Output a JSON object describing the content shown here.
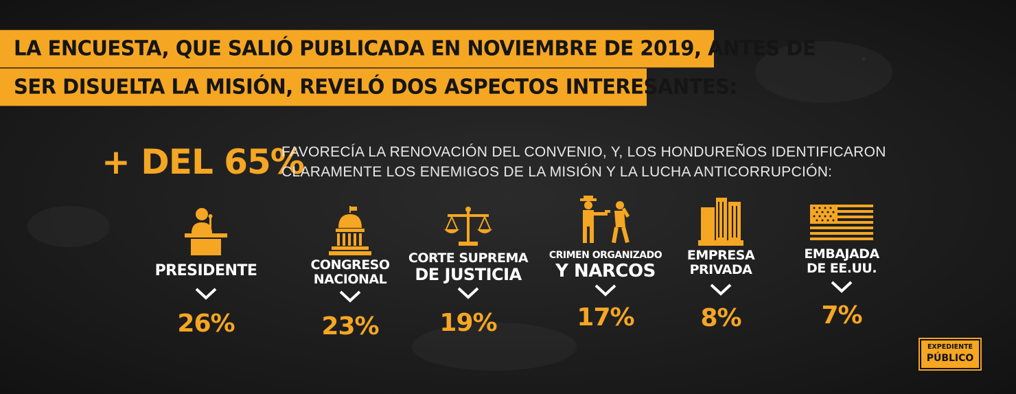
{
  "headline": {
    "line1": "LA ENCUESTA, QUE SALIÓ PUBLICADA EN NOVIEMBRE DE 2019, ANTES DE",
    "line2": "SER DISUELTA LA MISIÓN, REVELÓ DOS ASPECTOS INTERESANTES:"
  },
  "highlight": {
    "stat": "+ DEL 65%",
    "line1": "FAVORECÍA LA RENOVACIÓN DEL CONVENIO, Y, LOS HONDUREÑOS IDENTIFICARON",
    "line2": "CLARAMENTE LOS ENEMIGOS DE LA MISIÓN Y LA LUCHA ANTICORRUPCIÓN:"
  },
  "categories": [
    {
      "icon": "podium-icon",
      "label1": "PRESIDENTE",
      "label2": "",
      "percent": "26%"
    },
    {
      "icon": "capitol-icon",
      "label1": "CONGRESO",
      "label2": "NACIONAL",
      "percent": "23%"
    },
    {
      "icon": "scales-icon",
      "label1": "CORTE SUPREMA",
      "label2": "DE JUSTICIA",
      "percent": "19%"
    },
    {
      "icon": "gunman-icon",
      "label1": "CRIMEN ORGANIZADO",
      "label2": "Y NARCOS",
      "percent": "17%"
    },
    {
      "icon": "buildings-icon",
      "label1": "EMPRESA",
      "label2": "PRIVADA",
      "percent": "8%"
    },
    {
      "icon": "us-flag-icon",
      "label1": "EMBAJADA",
      "label2": "DE EE.UU.",
      "percent": "7%"
    }
  ],
  "logo": {
    "line1": "EXPEDIENTE",
    "line2": "PÚBLICO"
  },
  "colors": {
    "accent": "#f5a623",
    "background": "#1e1e1e",
    "text": "#ffffff"
  }
}
